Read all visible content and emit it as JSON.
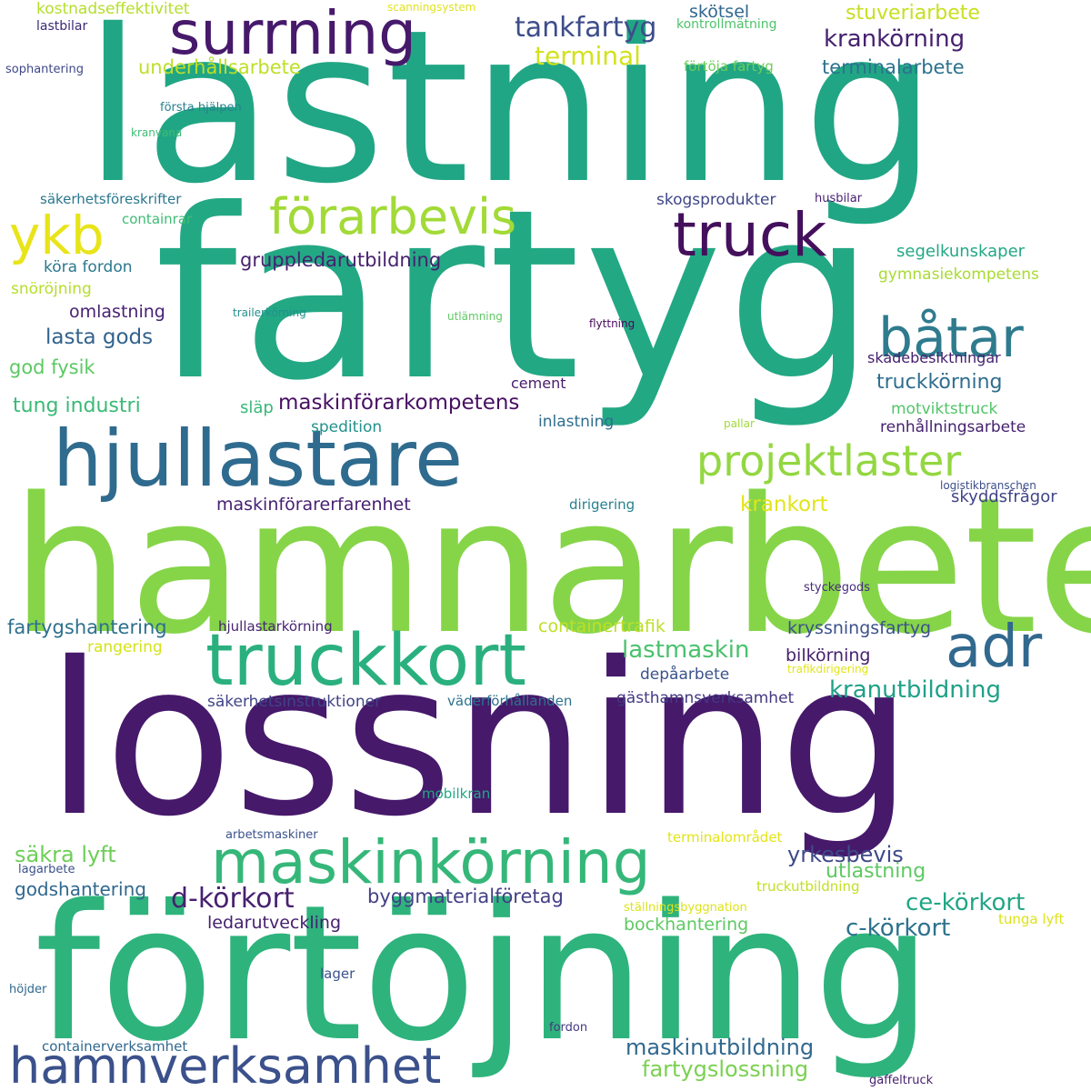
{
  "colors": {
    "background": "#ffffff",
    "deep_purple": "#46196b",
    "indigo": "#3c3f85",
    "blue": "#31618e",
    "teal_blue": "#2a7d8e",
    "teal": "#21988b",
    "green_teal": "#29af7e",
    "green": "#48c16e",
    "light_green": "#7fd34e",
    "lime": "#b4dd2c",
    "yellow": "#e3e419"
  },
  "words": [
    {
      "text": "lastning",
      "color": "#21a685"
    },
    {
      "text": "fartyg",
      "color": "#23a884"
    },
    {
      "text": "hamnarbete",
      "color": "#86d549"
    },
    {
      "text": "lossning",
      "color": "#46196b"
    },
    {
      "text": "förtöjning",
      "color": "#2eb37c"
    },
    {
      "text": "surrning",
      "color": "#46196b"
    },
    {
      "text": "hjullastare",
      "color": "#2f6b8e"
    },
    {
      "text": "truckkort",
      "color": "#2ab07f"
    },
    {
      "text": "maskinkörning",
      "color": "#35b779"
    },
    {
      "text": "hamnverksamhet",
      "color": "#3b518b"
    },
    {
      "text": "förarbevis",
      "color": "#a2da37"
    },
    {
      "text": "truck",
      "color": "#440f5c"
    },
    {
      "text": "båtar",
      "color": "#2f7b8e"
    },
    {
      "text": "adr",
      "color": "#31688e"
    },
    {
      "text": "ykb",
      "color": "#e8e419"
    },
    {
      "text": "projektlaster",
      "color": "#93d741"
    },
    {
      "text": "tankfartyg",
      "color": "#3d4d8a"
    },
    {
      "text": "krankörning",
      "color": "#46216f"
    },
    {
      "text": "stuveriarbete",
      "color": "#c7e020"
    },
    {
      "text": "terminal",
      "color": "#d2e21b"
    },
    {
      "text": "underhållsarbete",
      "color": "#bddf26"
    },
    {
      "text": "terminalarbete",
      "color": "#2c728e"
    },
    {
      "text": "skötsel",
      "color": "#31678e"
    },
    {
      "text": "kostnadseffektivitet",
      "color": "#b5de2b"
    },
    {
      "text": "scanningsystem",
      "color": "#e1e31f"
    },
    {
      "text": "kontrollmätning",
      "color": "#4ec36b"
    },
    {
      "text": "lastbilar",
      "color": "#3b2a76"
    },
    {
      "text": "sophantering",
      "color": "#3f4889"
    },
    {
      "text": "förtöja fartyg",
      "color": "#6cce59"
    },
    {
      "text": "första hjälpen",
      "color": "#26818e"
    },
    {
      "text": "kranvana",
      "color": "#3ebc74"
    },
    {
      "text": "säkerhetsföreskrifter",
      "color": "#2a788e"
    },
    {
      "text": "containrar",
      "color": "#3ebc74"
    },
    {
      "text": "skogsprodukter",
      "color": "#3f4788"
    },
    {
      "text": "husbilar",
      "color": "#482173"
    },
    {
      "text": "gruppledarutbildning",
      "color": "#46216f"
    },
    {
      "text": "segelkunskaper",
      "color": "#22a884"
    },
    {
      "text": "köra fordon",
      "color": "#2a788e"
    },
    {
      "text": "gymnasiekompetens",
      "color": "#a8db34"
    },
    {
      "text": "snöröjning",
      "color": "#b5de2b"
    },
    {
      "text": "omlastning",
      "color": "#482173"
    },
    {
      "text": "trailerkörning",
      "color": "#21918c"
    },
    {
      "text": "utlämning",
      "color": "#5ec962"
    },
    {
      "text": "flyttning",
      "color": "#46085c"
    },
    {
      "text": "lasta gods",
      "color": "#33638d"
    },
    {
      "text": "skadebesiktningar",
      "color": "#46216f"
    },
    {
      "text": "god fysik",
      "color": "#5cc863"
    },
    {
      "text": "truckkörning",
      "color": "#2e6e8e"
    },
    {
      "text": "cement",
      "color": "#481a6c"
    },
    {
      "text": "tung industri",
      "color": "#3aba76"
    },
    {
      "text": "maskinförarkompetens",
      "color": "#471063"
    },
    {
      "text": "släp",
      "color": "#37b878"
    },
    {
      "text": "motviktstruck",
      "color": "#52c569"
    },
    {
      "text": "inlastning",
      "color": "#2e6e8e"
    },
    {
      "text": "spedition",
      "color": "#21918c"
    },
    {
      "text": "pallar",
      "color": "#9fda3a"
    },
    {
      "text": "renhållningsarbete",
      "color": "#46216f"
    },
    {
      "text": "logistikbranschen",
      "color": "#3c4f8a"
    },
    {
      "text": "maskinförarerfarenhet",
      "color": "#482173"
    },
    {
      "text": "krankort",
      "color": "#e2e418"
    },
    {
      "text": "dirigering",
      "color": "#26818e"
    },
    {
      "text": "skyddsfrågor",
      "color": "#414487"
    },
    {
      "text": "styckegods",
      "color": "#472d7b"
    },
    {
      "text": "fartygshantering",
      "color": "#2d708e"
    },
    {
      "text": "hjullastarkörning",
      "color": "#482374"
    },
    {
      "text": "containertrafik",
      "color": "#bddf26"
    },
    {
      "text": "kryssningsfartyg",
      "color": "#3b528b"
    },
    {
      "text": "rangering",
      "color": "#d5e21a"
    },
    {
      "text": "lastmaskin",
      "color": "#4ac16d"
    },
    {
      "text": "bilkörning",
      "color": "#46216f"
    },
    {
      "text": "depåarbete",
      "color": "#3b528b"
    },
    {
      "text": "trafikdirigering",
      "color": "#e2e418"
    },
    {
      "text": "kranutbildning",
      "color": "#1fa188"
    },
    {
      "text": "säkerhetsinstruktioner",
      "color": "#414487"
    },
    {
      "text": "väderförhållanden",
      "color": "#2c728e"
    },
    {
      "text": "gästhamnsverksamhet",
      "color": "#443983"
    },
    {
      "text": "mobilkran",
      "color": "#22a884"
    },
    {
      "text": "arbetsmaskiner",
      "color": "#3b528b"
    },
    {
      "text": "terminalområdet",
      "color": "#e2e418"
    },
    {
      "text": "säkra lyft",
      "color": "#6ece58"
    },
    {
      "text": "yrkesbevis",
      "color": "#3e4989"
    },
    {
      "text": "lagarbete",
      "color": "#3b528b"
    },
    {
      "text": "utlastning",
      "color": "#5ec962"
    },
    {
      "text": "truckutbildning",
      "color": "#c2df23"
    },
    {
      "text": "godshantering",
      "color": "#31688e"
    },
    {
      "text": "d-körkort",
      "color": "#46216f"
    },
    {
      "text": "byggmaterialföretag",
      "color": "#424086"
    },
    {
      "text": "ce-körkort",
      "color": "#21a685"
    },
    {
      "text": "ställningsbyggnation",
      "color": "#dde318"
    },
    {
      "text": "ledarutveckling",
      "color": "#46216f"
    },
    {
      "text": "bockhantering",
      "color": "#5ec962"
    },
    {
      "text": "c-körkort",
      "color": "#2c728e"
    },
    {
      "text": "tunga lyft",
      "color": "#dde318"
    },
    {
      "text": "lager",
      "color": "#3b528b"
    },
    {
      "text": "höjder",
      "color": "#31688e"
    },
    {
      "text": "containerverksamhet",
      "color": "#31688e"
    },
    {
      "text": "fordon",
      "color": "#443983"
    },
    {
      "text": "maskinutbildning",
      "color": "#31688e"
    },
    {
      "text": "fartygslossning",
      "color": "#7ad151"
    },
    {
      "text": "gaffeltruck",
      "color": "#46216f"
    }
  ]
}
